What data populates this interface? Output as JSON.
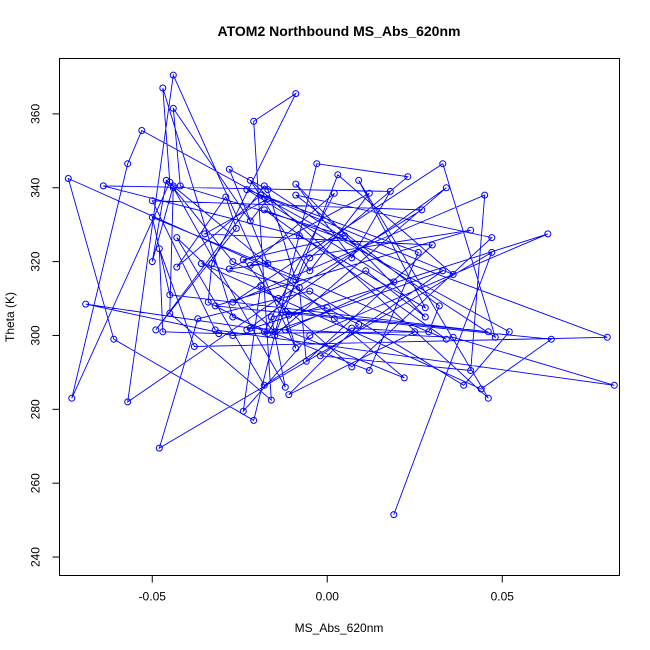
{
  "chart_data": {
    "type": "line",
    "title": "ATOM2 Northbound MS_Abs_620nm",
    "xlabel": "MS_Abs_620nm",
    "ylabel": "Theta (K)",
    "xlim": [
      -0.0765,
      0.0835
    ],
    "ylim": [
      235,
      375
    ],
    "xticks": [
      -0.05,
      0.0,
      0.05
    ],
    "xtick_labels": [
      "-0.05",
      "0.00",
      "0.05"
    ],
    "yticks": [
      240,
      260,
      280,
      300,
      320,
      340,
      360
    ],
    "ytick_labels": [
      "240",
      "260",
      "280",
      "300",
      "320",
      "340",
      "360"
    ],
    "grid": false,
    "line_color": "#0000ff",
    "marker": "open-circle",
    "series": [
      {
        "x": [
          0.019,
          0.047,
          -0.048,
          -0.037,
          -0.005,
          0.039,
          0.052,
          -0.053,
          -0.057,
          -0.073,
          -0.045,
          -0.047,
          -0.027,
          0.012,
          0.026,
          -0.023,
          0.019,
          -0.012,
          0.022,
          0.002,
          -0.046,
          -0.05,
          -0.044,
          -0.045,
          -0.016,
          -0.021,
          -0.009,
          -0.033,
          -0.034,
          -0.018,
          0.002,
          -0.022,
          0.041,
          -0.032,
          0.064,
          0.044,
          -0.036,
          -0.008,
          -0.006,
          0.03,
          -0.035,
          -0.017,
          -0.022,
          -0.044,
          -0.042,
          0.005,
          -0.024,
          -0.011,
          0.011,
          0.028,
          -0.009,
          0.007,
          0.018,
          -0.064,
          -0.008,
          0.028,
          0.009,
          0.046,
          -0.022,
          -0.005,
          0.012,
          -0.028,
          -0.017,
          -0.028,
          -0.017,
          -0.009,
          -0.074,
          -0.061,
          -0.021,
          -0.003,
          0.023,
          -0.005,
          -0.017,
          0.033,
          -0.002,
          0.041,
          0.045,
          -0.027,
          0.033,
          0.048,
          -0.018,
          -0.049,
          -0.026,
          -0.029,
          -0.043,
          -0.019,
          0.036,
          0.003,
          -0.015,
          0.034,
          -0.023,
          0.063,
          -0.005,
          -0.024,
          -0.019,
          0.007,
          0.047,
          -0.009,
          0.032,
          0.029,
          -0.031,
          -0.047,
          -0.048,
          -0.038,
          0.08,
          -0.018,
          0.034,
          -0.05,
          -0.045,
          0.046,
          -0.012,
          -0.009,
          -0.044,
          -0.057,
          -0.014,
          0.027,
          -0.05,
          -0.032,
          0.082,
          0.036,
          -0.022,
          -0.069,
          -0.027,
          -0.015,
          -0.043,
          -0.018,
          0.007,
          0.025,
          -0.011,
          0.009,
          -0.027,
          -0.044,
          -0.012,
          -0.016,
          0.0
        ],
        "y": [
          251.5,
          322.5,
          269.5,
          304.5,
          312.0,
          286.5,
          301.0,
          355.5,
          346.5,
          283.0,
          341.5,
          367.0,
          305.0,
          290.5,
          322.5,
          339.5,
          314.5,
          301.5,
          288.5,
          304.5,
          342.0,
          320.0,
          340.5,
          306.0,
          282.5,
          358.0,
          365.5,
          319.5,
          309.0,
          301.0,
          338.5,
          319.0,
          328.5,
          308.0,
          299.0,
          285.5,
          319.5,
          313.0,
          293.0,
          324.5,
          327.5,
          337.0,
          331.0,
          361.5,
          340.5,
          327.0,
          320.5,
          305.5,
          317.5,
          305.0,
          341.0,
          321.0,
          339.0,
          340.5,
          327.0,
          307.5,
          342.0,
          283.0,
          342.0,
          317.5,
          338.5,
          318.0,
          319.5,
          345.0,
          339.5,
          315.0,
          342.5,
          299.0,
          277.0,
          346.5,
          343.0,
          321.0,
          300.5,
          317.5,
          294.5,
          290.5,
          338.0,
          309.0,
          346.5,
          299.5,
          340.5,
          301.5,
          329.0,
          337.5,
          318.5,
          338.0,
          316.5,
          343.5,
          300.0,
          340.0,
          301.5,
          327.5,
          300.0,
          279.5,
          313.5,
          291.5,
          326.5,
          338.0,
          308.0,
          301.0,
          300.5,
          301.0,
          323.5,
          297.0,
          299.5,
          334.0,
          299.0,
          332.0,
          311.0,
          301.0,
          306.5,
          296.5,
          370.5,
          282.0,
          310.0,
          334.0,
          336.5,
          301.5,
          286.5,
          299.5,
          302.0,
          308.5,
          300.0,
          301.0,
          326.5,
          286.5,
          302.0,
          301.0,
          284.0,
          303.0,
          320.0,
          340.0,
          286.0,
          305.0,
          307.5
        ]
      }
    ]
  }
}
